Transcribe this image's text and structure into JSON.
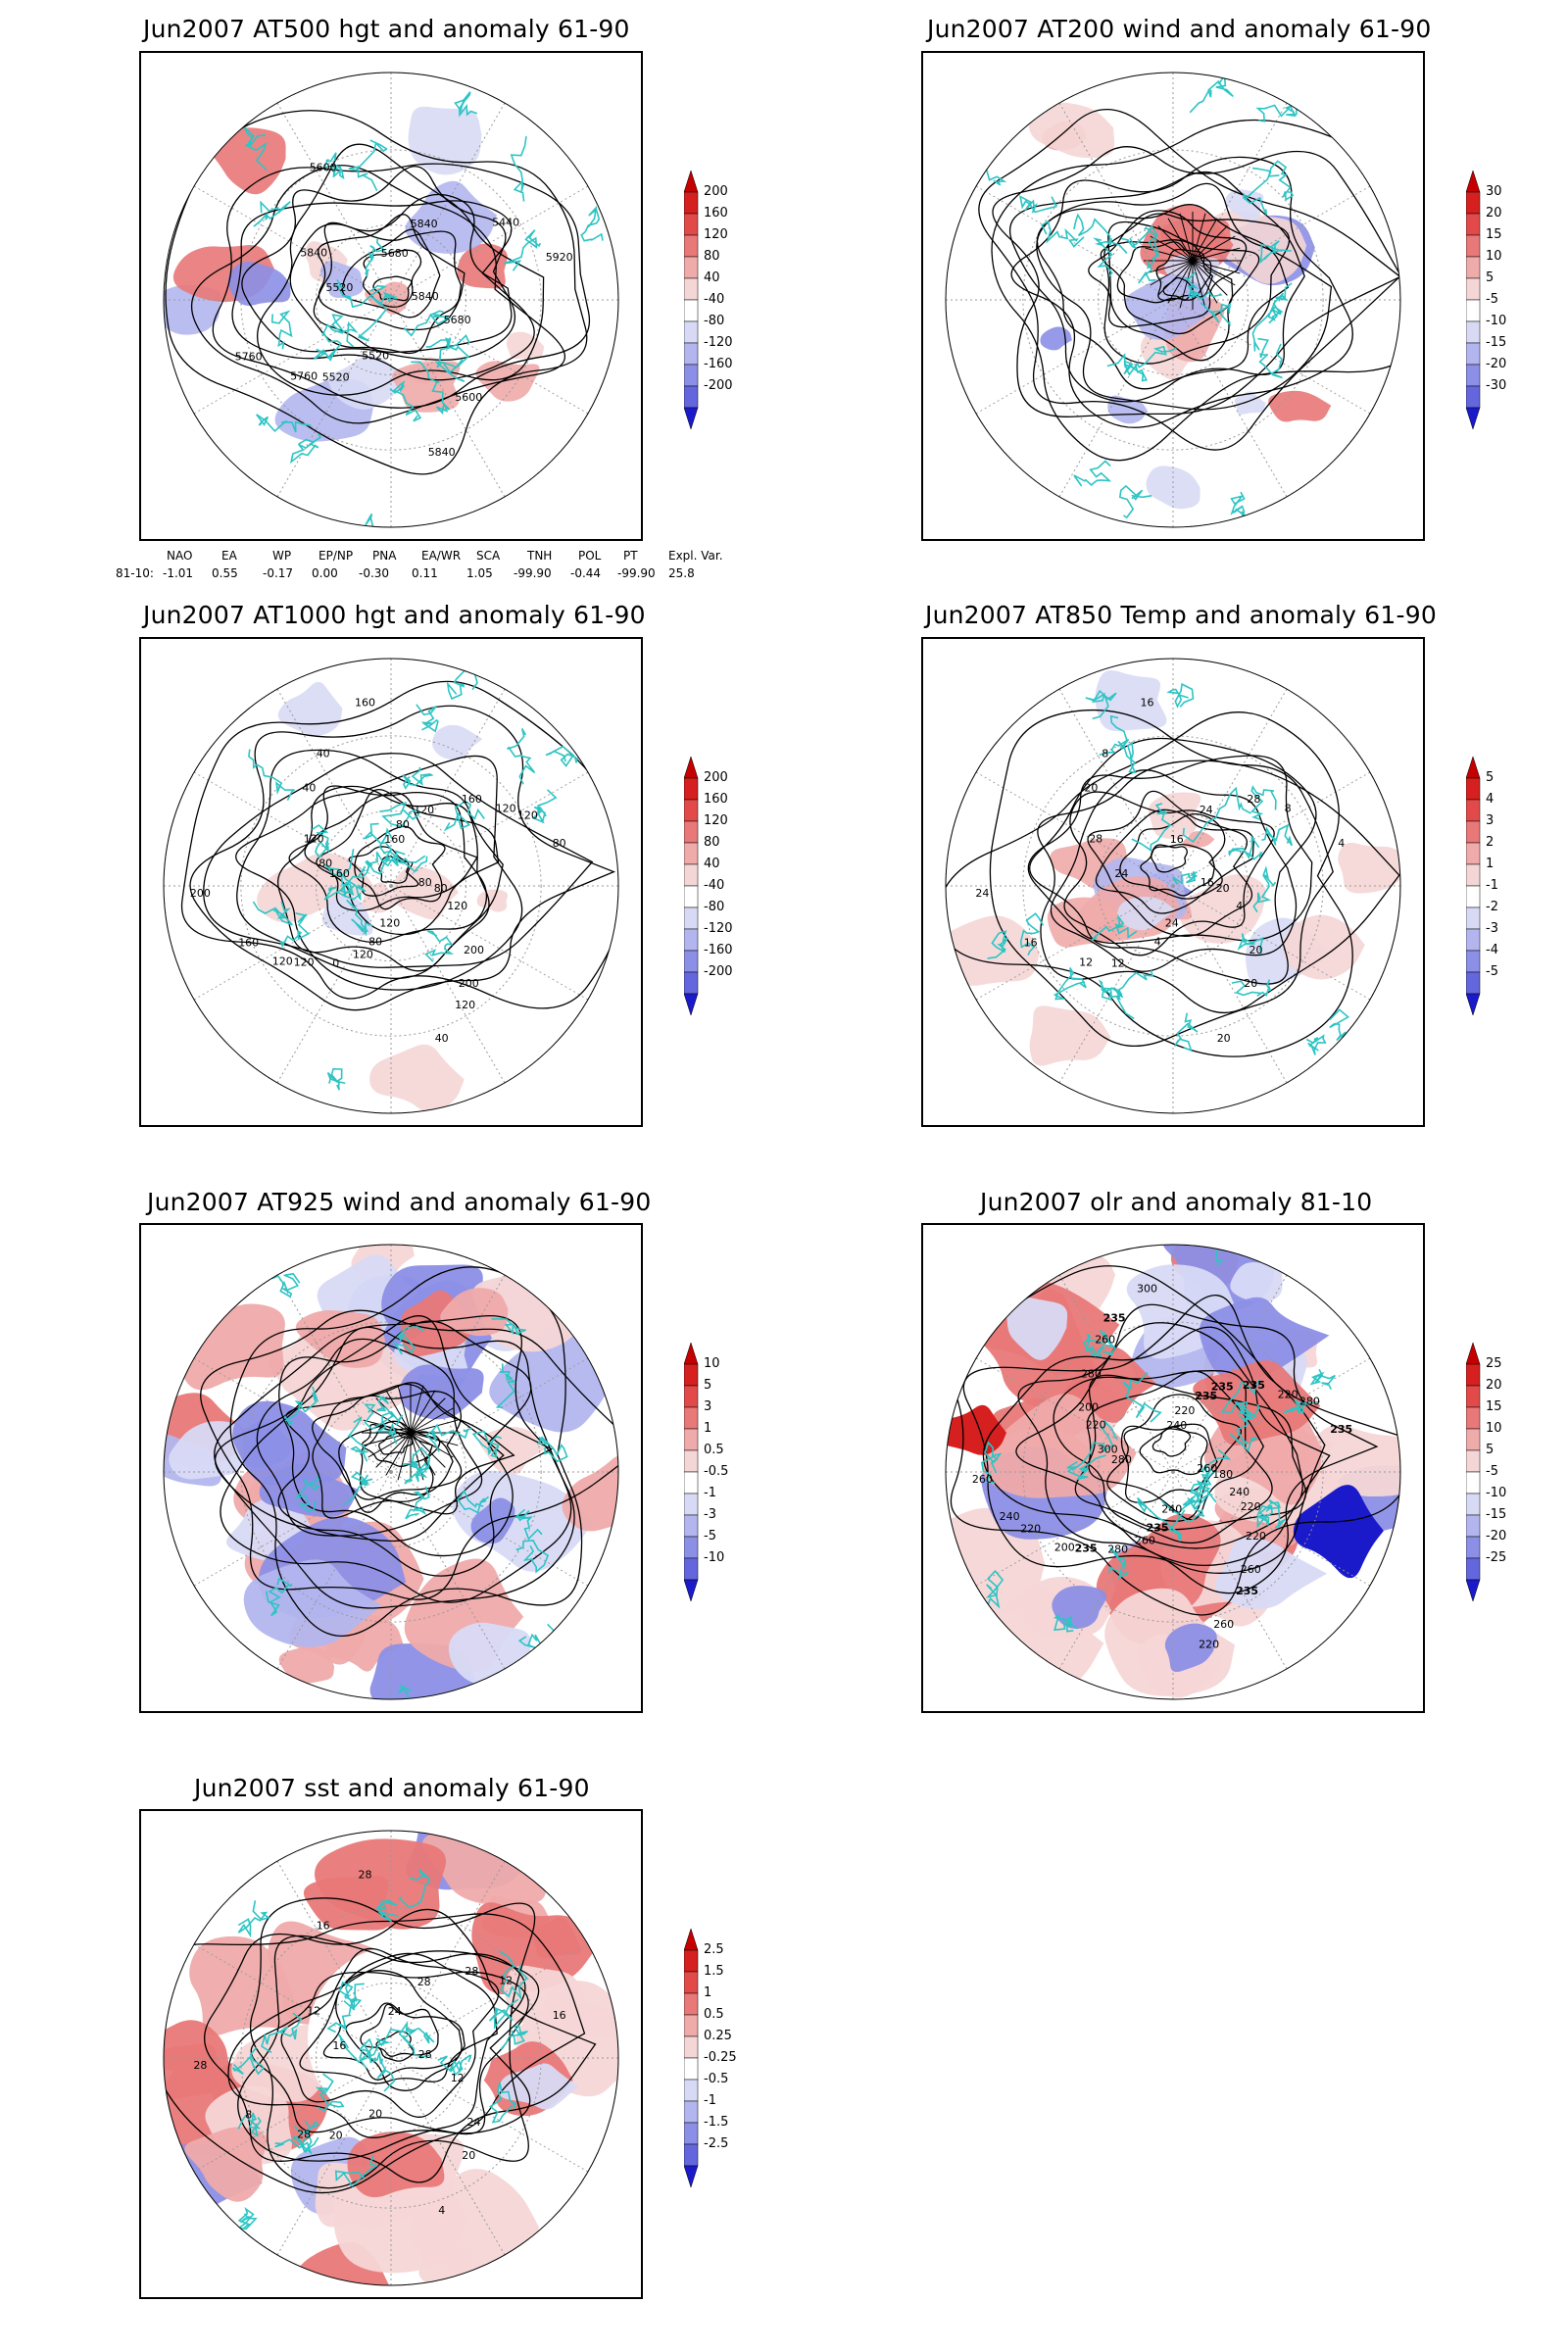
{
  "palette": {
    "coast": "#2ec4c4",
    "red": [
      "#f5d6d6",
      "#efaaaa",
      "#e97878",
      "#e24a4a",
      "#d61f1f",
      "#c50000"
    ],
    "blue": [
      "#d8daf5",
      "#b3b6ee",
      "#8c8fe6",
      "#6466dd",
      "#3c3fd4",
      "#1a1acb"
    ],
    "contour": "#000000"
  },
  "panels": [
    {
      "id": "z500",
      "title": "Jun2007 AT500 hgt and anomaly 61-90",
      "colorbar": [
        "200",
        "160",
        "120",
        "80",
        "40",
        "-40",
        "-80",
        "-120",
        "-160",
        "-200"
      ],
      "labels": [
        "5840",
        "5760",
        "5680",
        "5600",
        "5520",
        "5440",
        "5520",
        "5600",
        "5680",
        "5760",
        "5840",
        "5840",
        "5840",
        "5920",
        "5520"
      ],
      "fill": "medium",
      "streamlines": false
    },
    {
      "id": "u200",
      "title": "Jun2007 AT200 wind and anomaly 61-90",
      "colorbar": [
        "30",
        "20",
        "15",
        "10",
        "5",
        "-5",
        "-10",
        "-15",
        "-20",
        "-30"
      ],
      "labels": [],
      "fill": "medium",
      "streamlines": true
    },
    {
      "id": "z1000",
      "title": "Jun2007 AT1000 hgt and anomaly 61-90",
      "colorbar": [
        "200",
        "160",
        "120",
        "80",
        "40",
        "-40",
        "-80",
        "-120",
        "-160",
        "-200"
      ],
      "labels": [
        "80",
        "120",
        "160",
        "200",
        "160",
        "120",
        "80",
        "40",
        "120",
        "160",
        "120",
        "40",
        "120",
        "80",
        "0",
        "160",
        "200",
        "200",
        "160",
        "120",
        "40",
        "80",
        "120",
        "80",
        "120",
        "80",
        "120",
        "120"
      ],
      "fill": "light",
      "streamlines": false
    },
    {
      "id": "t850",
      "title": "Jun2007 AT850 Temp and anomaly 61-90",
      "colorbar": [
        "5",
        "4",
        "3",
        "2",
        "1",
        "-1",
        "-2",
        "-3",
        "-4",
        "-5"
      ],
      "labels": [
        "16",
        "12",
        "16",
        "20",
        "24",
        "8",
        "4",
        "8",
        "4",
        "16",
        "24",
        "20",
        "28",
        "4",
        "12",
        "16",
        "20",
        "24",
        "28",
        "24",
        "20",
        "20"
      ],
      "fill": "medium",
      "streamlines": false
    },
    {
      "id": "u925",
      "title": "Jun2007 AT925 wind and anomaly 61-90",
      "colorbar": [
        "10",
        "5",
        "3",
        "1",
        "0.5",
        "-0.5",
        "-1",
        "-3",
        "-5",
        "-10"
      ],
      "labels": [],
      "fill": "heavy",
      "streamlines": true
    },
    {
      "id": "olr",
      "title": "Jun2007 olr and anomaly 81-10",
      "colorbar": [
        "25",
        "20",
        "15",
        "10",
        "5",
        "-5",
        "-10",
        "-15",
        "-20",
        "-25"
      ],
      "labels": [
        "260",
        "235",
        "240",
        "260",
        "280",
        "220",
        "235",
        "260",
        "240",
        "220",
        "235",
        "260",
        "220",
        "235",
        "280",
        "300",
        "220",
        "260",
        "235",
        "240",
        "280",
        "180",
        "200",
        "220",
        "235",
        "300",
        "280",
        "260",
        "235",
        "220",
        "240",
        "235",
        "220",
        "200"
      ],
      "fill": "heavy",
      "streamlines": false
    },
    {
      "id": "sst",
      "title": "Jun2007 sst and anomaly 61-90",
      "colorbar": [
        "2.5",
        "1.5",
        "1",
        "0.5",
        "0.25",
        "-0.25",
        "-0.5",
        "-1",
        "-1.5",
        "-2.5"
      ],
      "labels": [
        "28",
        "28",
        "24",
        "20",
        "16",
        "12",
        "20",
        "16",
        "12",
        "8",
        "28",
        "4",
        "12",
        "16",
        "20",
        "28",
        "24",
        "28",
        "28"
      ],
      "fill": "sst",
      "streamlines": false
    }
  ],
  "teleconnections": {
    "headers": [
      "NAO",
      "EA",
      "WP",
      "EP/NP",
      "PNA",
      "EA/WR",
      "SCA",
      "TNH",
      "POL",
      "PT",
      "Expl. Var."
    ],
    "row_label": "81-10:",
    "values": [
      "-1.01",
      "0.55",
      "-0.17",
      "0.00",
      "-0.30",
      "0.11",
      "1.05",
      "-99.90",
      "-0.44",
      "-99.90",
      "25.8"
    ]
  }
}
